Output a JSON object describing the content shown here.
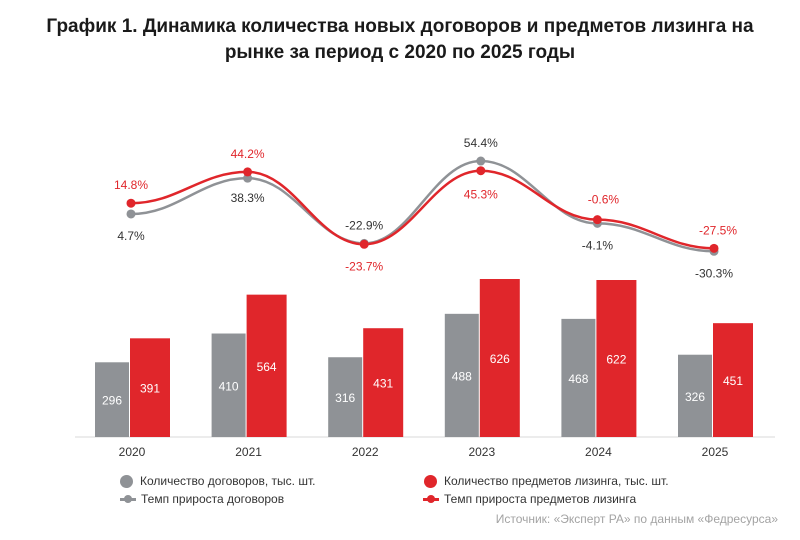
{
  "chart_data": {
    "type": "bar+line",
    "title_lines": [
      "График 1. Динамика количества новых договоров и предметов лизинга на",
      "рынке за период с 2020 по 2025 годы"
    ],
    "categories": [
      "2020",
      "2021",
      "2022",
      "2023",
      "2024",
      "2025"
    ],
    "bar_series": [
      {
        "name": "Количество договоров, тыс. шт.",
        "color": "#8f9296",
        "values": [
          296,
          410,
          316,
          488,
          468,
          326
        ]
      },
      {
        "name": "Количество предметов лизинга, тыс. шт.",
        "color": "#e0262b",
        "values": [
          391,
          564,
          431,
          626,
          622,
          451
        ]
      }
    ],
    "line_series": [
      {
        "name": "Темп прироста договоров",
        "color": "#8f9296",
        "values": [
          4.7,
          38.3,
          -22.9,
          54.4,
          -4.1,
          -30.3
        ],
        "labels": [
          "4.7%",
          "38.3%",
          "-22.9%",
          "54.4%",
          "-4.1%",
          "-30.3%"
        ]
      },
      {
        "name": "Темп прироста предметов лизинга",
        "color": "#e0262b",
        "values": [
          14.8,
          44.2,
          -23.7,
          45.3,
          -0.6,
          -27.5
        ],
        "labels": [
          "14.8%",
          "44.2%",
          "-23.7%",
          "45.3%",
          "-0.6%",
          "-27.5%"
        ]
      }
    ],
    "grid": false,
    "legend_position": "bottom"
  },
  "source": "Источник: «Эксперт РА» по данным «Федресурса»"
}
